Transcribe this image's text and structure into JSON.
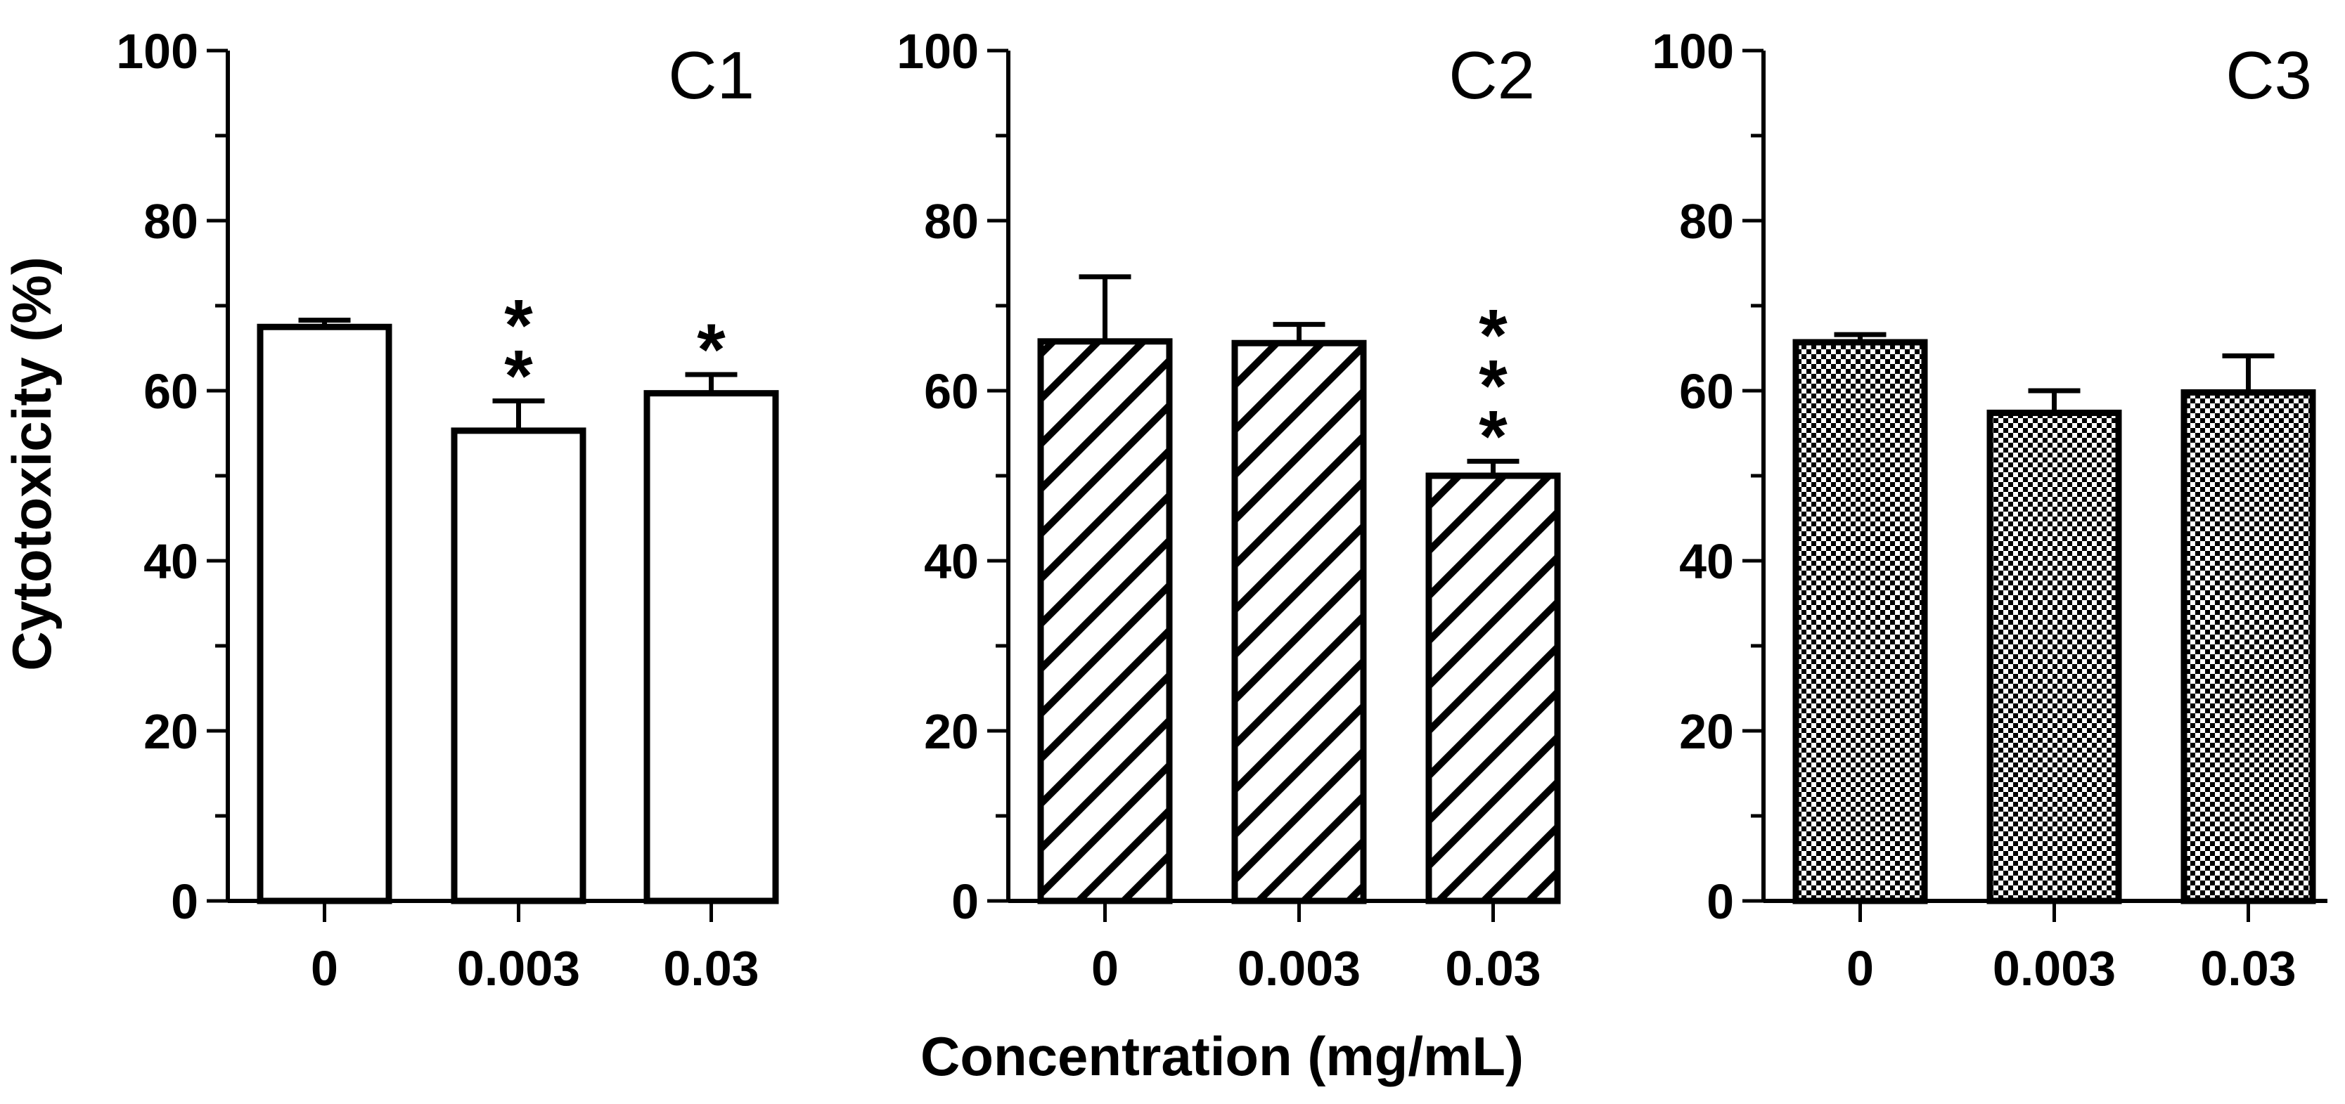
{
  "chart_data": {
    "type": "bar",
    "ylabel": "Cytotoxicity (%)",
    "xlabel": "Concentration (mg/mL)",
    "ylim": [
      0,
      100
    ],
    "yticks": [
      0,
      20,
      40,
      60,
      80,
      100
    ],
    "panels": [
      {
        "title": "C1",
        "pattern": "none",
        "categories": [
          "0",
          "0.003",
          "0.03"
        ],
        "values": [
          67.5,
          55.3,
          59.7
        ],
        "errors": [
          0.8,
          3.5,
          2.2
        ],
        "significance": [
          "",
          "**",
          "*"
        ]
      },
      {
        "title": "C2",
        "pattern": "hatch",
        "categories": [
          "0",
          "0.003",
          "0.03"
        ],
        "values": [
          65.8,
          65.6,
          50.0
        ],
        "errors": [
          7.6,
          2.2,
          1.7
        ],
        "significance": [
          "",
          "",
          "***"
        ]
      },
      {
        "title": "C3",
        "pattern": "checker",
        "categories": [
          "0",
          "0.003",
          "0.03"
        ],
        "values": [
          65.7,
          57.4,
          59.8
        ],
        "errors": [
          0.9,
          2.6,
          4.3
        ],
        "significance": [
          "",
          "",
          ""
        ]
      }
    ]
  }
}
